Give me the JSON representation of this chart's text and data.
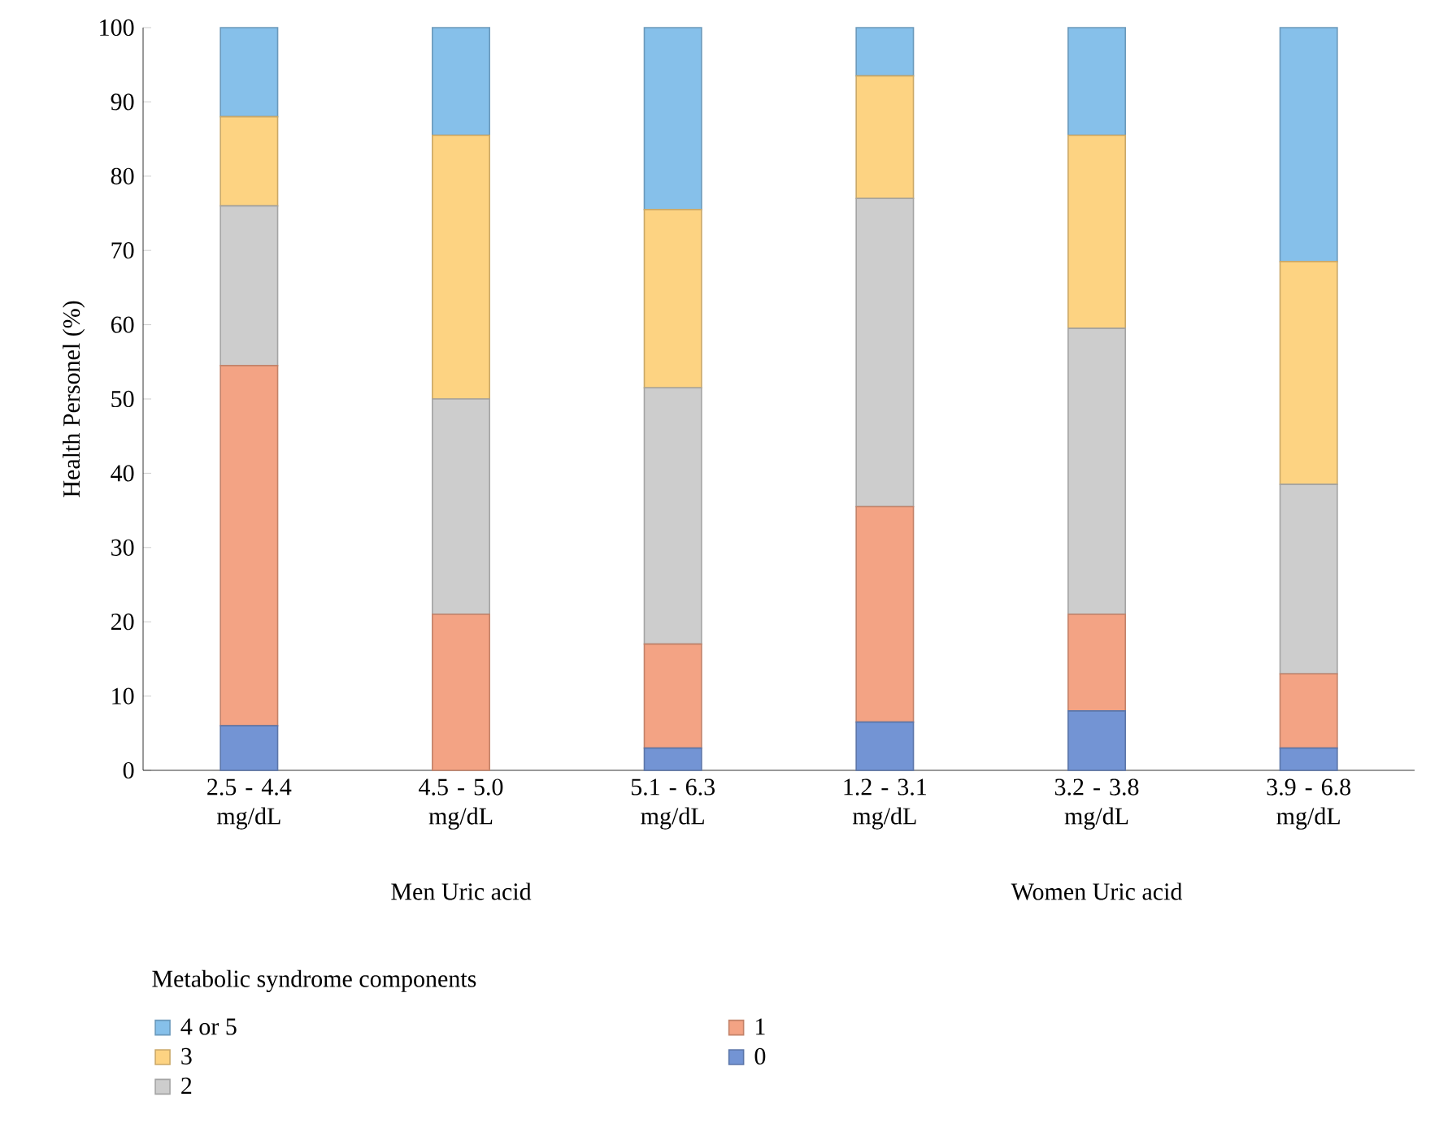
{
  "chart_data": {
    "type": "bar",
    "stacked": true,
    "ylabel": "Health Personel (%)",
    "legend_title": "Metabolic syndrome components",
    "categories": [
      "2.5 - 4.4 mg/dL",
      "4.5 - 5.0 mg/dL",
      "5.1 - 6.3 mg/dL",
      "1.2 - 3.1 mg/dL",
      "3.2 - 3.8 mg/dL",
      "3.9 - 6.8 mg/dL"
    ],
    "series": [
      {
        "name": "0",
        "color": "#7394d4",
        "values": [
          6,
          0,
          3,
          6.5,
          8,
          3
        ]
      },
      {
        "name": "1",
        "color": "#f3a384",
        "values": [
          48.5,
          21,
          14,
          29,
          13,
          10
        ]
      },
      {
        "name": "2",
        "color": "#cdcdcd",
        "values": [
          21.5,
          29,
          34.5,
          41.5,
          38.5,
          25.5
        ]
      },
      {
        "name": "3",
        "color": "#fdd382",
        "values": [
          12,
          35.5,
          24,
          16.5,
          26,
          30
        ]
      },
      {
        "name": "4 or 5",
        "color": "#86c0ea",
        "values": [
          12,
          14.5,
          24.5,
          6.5,
          14.5,
          31.5
        ]
      }
    ],
    "ylim": [
      0,
      100
    ],
    "yticks": [
      0,
      10,
      20,
      30,
      40,
      50,
      60,
      70,
      80,
      90,
      100
    ],
    "legend": "bottom",
    "annotations": [
      "Men Uric acid",
      "Women Uric acid"
    ]
  }
}
